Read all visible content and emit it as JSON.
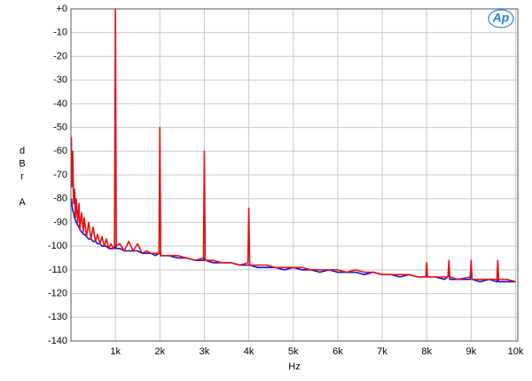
{
  "chart_data": {
    "type": "line",
    "xlabel": "Hz",
    "ylabel": "dBr A",
    "logo_text": "Ap",
    "x": [
      10,
      20,
      40,
      60,
      80,
      100,
      120,
      150,
      180,
      200,
      240,
      280,
      300,
      350,
      400,
      450,
      500,
      550,
      600,
      650,
      700,
      750,
      800,
      850,
      900,
      950,
      980,
      1000,
      1020,
      1100,
      1200,
      1300,
      1400,
      1500,
      1600,
      1700,
      1800,
      1900,
      1980,
      2000,
      2020,
      2200,
      2400,
      2600,
      2800,
      2980,
      3000,
      3020,
      3200,
      3400,
      3600,
      3800,
      3980,
      4000,
      4020,
      4200,
      4400,
      4600,
      4800,
      5000,
      5200,
      5400,
      5600,
      5800,
      6000,
      6200,
      6400,
      6600,
      6800,
      7000,
      7200,
      7400,
      7600,
      7800,
      7980,
      8000,
      8020,
      8200,
      8400,
      8480,
      8500,
      8520,
      8700,
      8980,
      9000,
      9020,
      9200,
      9400,
      9580,
      9600,
      9620,
      9800,
      10000
    ],
    "series": [
      {
        "color": "#1010e0",
        "values": [
          -80,
          -82,
          -85,
          -86,
          -88,
          -89,
          -90,
          -91,
          -92,
          -93,
          -94,
          -95,
          -95,
          -96,
          -97,
          -97,
          -98,
          -98,
          -99,
          -99,
          -100,
          -100,
          -100,
          -101,
          -101,
          -101,
          -101,
          -100,
          -101,
          -101,
          -102,
          -102,
          -102,
          -102,
          -103,
          -103,
          -103,
          -104,
          -103,
          -103,
          -104,
          -104,
          -105,
          -105,
          -106,
          -106,
          -105,
          -106,
          -107,
          -107,
          -107,
          -108,
          -108,
          -108,
          -108,
          -109,
          -109,
          -109,
          -110,
          -109,
          -110,
          -110,
          -111,
          -110,
          -111,
          -111,
          -111,
          -112,
          -111,
          -112,
          -112,
          -113,
          -112,
          -113,
          -113,
          -112,
          -113,
          -113,
          -114,
          -113,
          -108,
          -114,
          -114,
          -114,
          -108,
          -114,
          -115,
          -114,
          -115,
          -114,
          -115,
          -115,
          -115
        ]
      },
      {
        "color": "#e81010",
        "values": [
          -54,
          -75,
          -60,
          -82,
          -76,
          -88,
          -80,
          -90,
          -82,
          -93,
          -86,
          -94,
          -88,
          -96,
          -90,
          -97,
          -92,
          -98,
          -95,
          -99,
          -96,
          -100,
          -97,
          -101,
          -99,
          -101,
          -100,
          0,
          -100,
          -99,
          -102,
          -98,
          -102,
          -99,
          -103,
          -102,
          -103,
          -103,
          -103,
          -50,
          -104,
          -104,
          -104,
          -105,
          -106,
          -105,
          -60,
          -106,
          -106,
          -107,
          -107,
          -108,
          -107,
          -84,
          -108,
          -108,
          -108,
          -109,
          -109,
          -109,
          -109,
          -110,
          -110,
          -110,
          -110,
          -111,
          -110,
          -111,
          -111,
          -112,
          -112,
          -112,
          -112,
          -113,
          -113,
          -107,
          -113,
          -113,
          -113,
          -113,
          -106,
          -113,
          -114,
          -113,
          -106,
          -114,
          -114,
          -114,
          -114,
          -106,
          -114,
          -114,
          -115
        ]
      }
    ],
    "xlim": [
      0,
      10050
    ],
    "ylim": [
      -140,
      0
    ],
    "xticks": [
      {
        "value": 1000,
        "label": "1k"
      },
      {
        "value": 2000,
        "label": "2k"
      },
      {
        "value": 3000,
        "label": "3k"
      },
      {
        "value": 4000,
        "label": "4k"
      },
      {
        "value": 5000,
        "label": "5k"
      },
      {
        "value": 6000,
        "label": "6k"
      },
      {
        "value": 7000,
        "label": "7k"
      },
      {
        "value": 8000,
        "label": "8k"
      },
      {
        "value": 9000,
        "label": "9k"
      },
      {
        "value": 10000,
        "label": "10k"
      }
    ],
    "yticks": [
      {
        "value": 0,
        "label": "+0"
      },
      -10,
      -20,
      -30,
      -40,
      -50,
      -60,
      -70,
      -80,
      -90,
      -100,
      -110,
      -120,
      -130,
      -140
    ],
    "grid": true
  }
}
